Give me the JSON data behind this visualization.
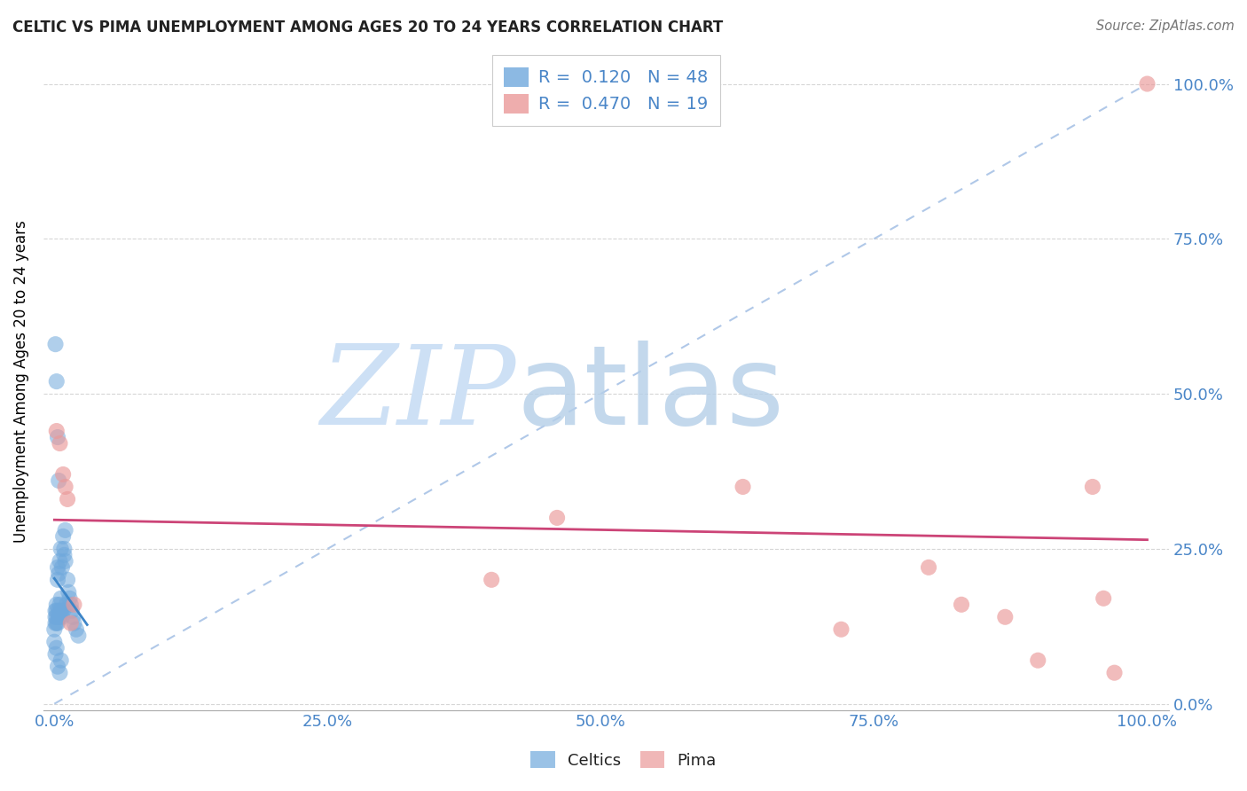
{
  "title": "CELTIC VS PIMA UNEMPLOYMENT AMONG AGES 20 TO 24 YEARS CORRELATION CHART",
  "source": "Source: ZipAtlas.com",
  "ylabel_label": "Unemployment Among Ages 20 to 24 years",
  "celtics_color": "#6fa8dc",
  "pima_color": "#ea9999",
  "celtics_line_color": "#3d85c8",
  "pima_line_color": "#cc4477",
  "ref_line_color": "#b0c8e8",
  "celtics_R": 0.12,
  "celtics_N": 48,
  "pima_R": 0.47,
  "pima_N": 19,
  "celtics_x": [
    0.0,
    0.0,
    0.001,
    0.001,
    0.001,
    0.001,
    0.002,
    0.002,
    0.002,
    0.002,
    0.003,
    0.003,
    0.003,
    0.004,
    0.004,
    0.004,
    0.005,
    0.005,
    0.005,
    0.006,
    0.006,
    0.006,
    0.007,
    0.007,
    0.008,
    0.008,
    0.009,
    0.009,
    0.01,
    0.01,
    0.011,
    0.012,
    0.013,
    0.014,
    0.015,
    0.016,
    0.017,
    0.018,
    0.02,
    0.022,
    0.001,
    0.002,
    0.003,
    0.004,
    0.005,
    0.006,
    0.002,
    0.003
  ],
  "celtics_y": [
    0.1,
    0.12,
    0.13,
    0.14,
    0.15,
    0.08,
    0.13,
    0.15,
    0.14,
    0.16,
    0.2,
    0.22,
    0.13,
    0.15,
    0.14,
    0.21,
    0.14,
    0.16,
    0.23,
    0.15,
    0.17,
    0.25,
    0.22,
    0.14,
    0.27,
    0.15,
    0.25,
    0.24,
    0.28,
    0.23,
    0.16,
    0.2,
    0.18,
    0.17,
    0.16,
    0.15,
    0.14,
    0.13,
    0.12,
    0.11,
    0.58,
    0.52,
    0.43,
    0.36,
    0.05,
    0.07,
    0.09,
    0.06
  ],
  "pima_x": [
    0.002,
    0.005,
    0.008,
    0.01,
    0.012,
    0.015,
    0.018,
    0.4,
    0.46,
    0.63,
    0.72,
    0.8,
    0.83,
    0.87,
    0.9,
    0.95,
    0.96,
    0.97,
    1.0
  ],
  "pima_y": [
    0.44,
    0.42,
    0.37,
    0.35,
    0.33,
    0.13,
    0.16,
    0.2,
    0.3,
    0.35,
    0.12,
    0.22,
    0.16,
    0.14,
    0.07,
    0.35,
    0.17,
    0.05,
    1.0
  ],
  "xlim": [
    0.0,
    1.0
  ],
  "ylim": [
    0.0,
    1.05
  ],
  "xticks": [
    0.0,
    0.25,
    0.5,
    0.75,
    1.0
  ],
  "yticks": [
    0.0,
    0.25,
    0.5,
    0.75,
    1.0
  ]
}
